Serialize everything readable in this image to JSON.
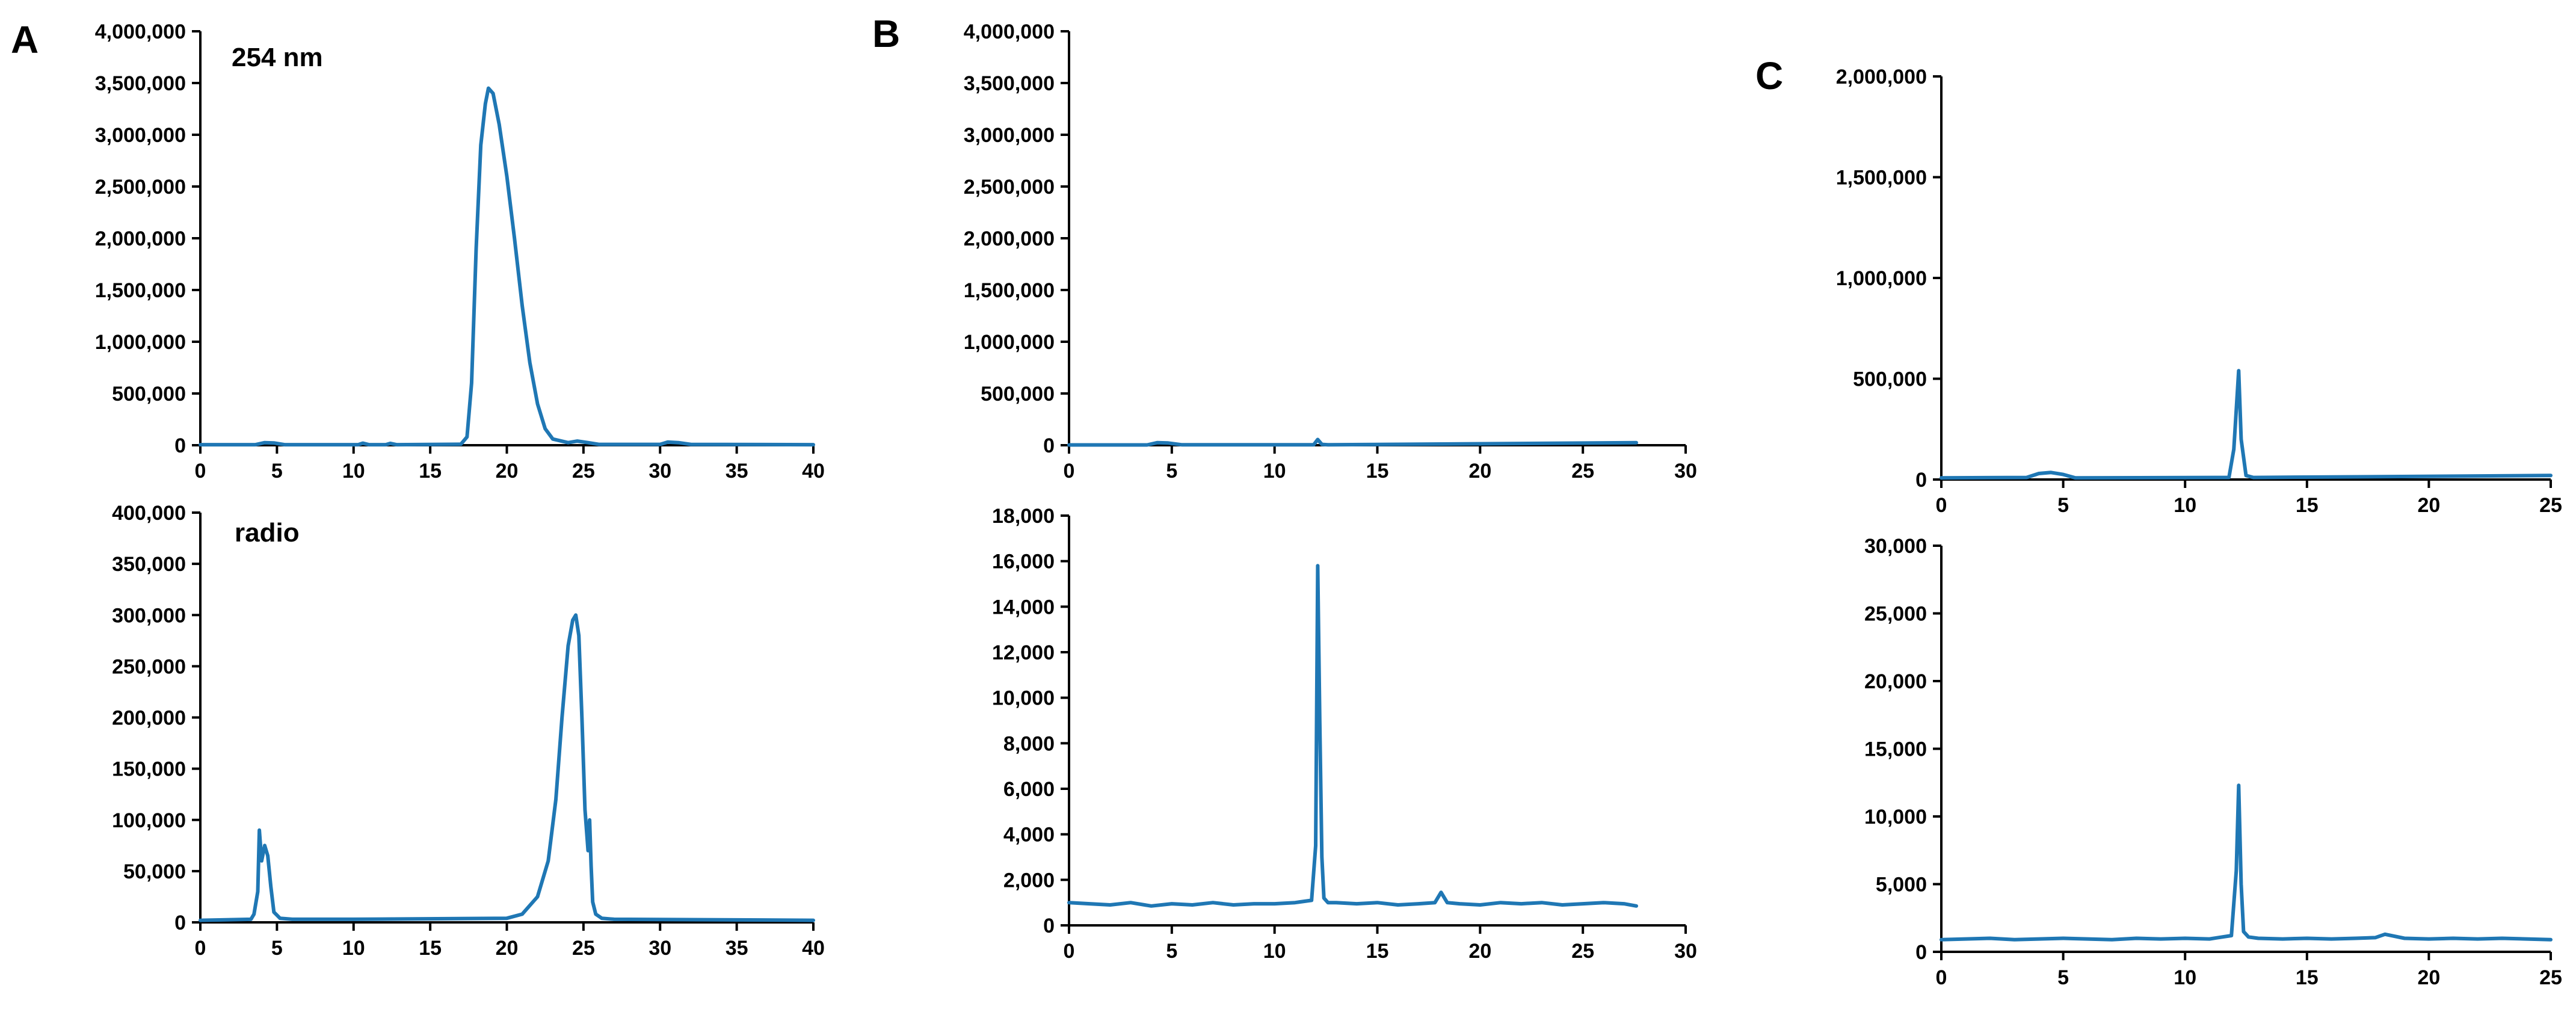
{
  "colors": {
    "trace": "#1f77b4",
    "axis": "#000000"
  },
  "panel_letters": [
    "A",
    "B",
    "C"
  ],
  "chart_data": [
    {
      "type": "line",
      "panel": "A",
      "annotation": "254 nm",
      "xlim": [
        0,
        40
      ],
      "ylim": [
        0,
        4000000
      ],
      "xticks": [
        0,
        5,
        10,
        15,
        20,
        25,
        30,
        35,
        40
      ],
      "xtick_labels": [
        "0",
        "5",
        "10",
        "15",
        "20",
        "25",
        "30",
        "35",
        "40"
      ],
      "yticks": [
        0,
        500000,
        1000000,
        1500000,
        2000000,
        2500000,
        3000000,
        3500000,
        4000000
      ],
      "ytick_labels": [
        "0",
        "500,000",
        "1,000,000",
        "1,500,000",
        "2,000,000",
        "2,500,000",
        "3,000,000",
        "3,500,000",
        "4,000,000"
      ],
      "grid": false,
      "series": [
        {
          "x": [
            0,
            3.6,
            4.2,
            4.8,
            5.5,
            10.3,
            10.6,
            11,
            12.1,
            12.4,
            12.8,
            17,
            17.4,
            17.7,
            18,
            18.3,
            18.6,
            18.8,
            19.1,
            19.5,
            20,
            20.5,
            21,
            21.5,
            22,
            22.5,
            23,
            24,
            24.6,
            25.3,
            26,
            30,
            30.5,
            31.2,
            32,
            40
          ],
          "y": [
            5000,
            5000,
            25000,
            22000,
            5000,
            5000,
            20000,
            5000,
            5000,
            18000,
            5000,
            10000,
            80000,
            600000,
            1900000,
            2900000,
            3300000,
            3450000,
            3400000,
            3100000,
            2600000,
            2000000,
            1350000,
            800000,
            400000,
            160000,
            60000,
            25000,
            40000,
            25000,
            8000,
            8000,
            30000,
            25000,
            8000,
            5000
          ]
        }
      ]
    },
    {
      "type": "line",
      "panel": "A",
      "annotation": "radio",
      "xlim": [
        0,
        40
      ],
      "ylim": [
        0,
        400000
      ],
      "xticks": [
        0,
        5,
        10,
        15,
        20,
        25,
        30,
        35,
        40
      ],
      "xtick_labels": [
        "0",
        "5",
        "10",
        "15",
        "20",
        "25",
        "30",
        "35",
        "40"
      ],
      "yticks": [
        0,
        50000,
        100000,
        150000,
        200000,
        250000,
        300000,
        350000,
        400000
      ],
      "ytick_labels": [
        "0",
        "50,000",
        "100,000",
        "150,000",
        "200,000",
        "250,000",
        "300,000",
        "350,000",
        "400,000"
      ],
      "grid": false,
      "series": [
        {
          "x": [
            0,
            3.3,
            3.5,
            3.75,
            3.85,
            4,
            4.2,
            4.4,
            4.6,
            4.8,
            5.2,
            6,
            10,
            20,
            21,
            22,
            22.7,
            23.2,
            23.6,
            24,
            24.3,
            24.5,
            24.7,
            24.9,
            25.1,
            25.3,
            25.4,
            25.5,
            25.6,
            25.8,
            26.2,
            27,
            40
          ],
          "y": [
            2000,
            3000,
            8000,
            30000,
            90000,
            60000,
            75000,
            65000,
            35000,
            10000,
            4000,
            3000,
            3000,
            4000,
            8000,
            25000,
            60000,
            120000,
            200000,
            270000,
            295000,
            300000,
            280000,
            200000,
            110000,
            70000,
            100000,
            55000,
            20000,
            8000,
            4000,
            3000,
            2000
          ]
        }
      ]
    },
    {
      "type": "line",
      "panel": "B",
      "xlim": [
        0,
        30
      ],
      "ylim": [
        0,
        4000000
      ],
      "xticks": [
        0,
        5,
        10,
        15,
        20,
        25,
        30
      ],
      "xtick_labels": [
        "0",
        "5",
        "10",
        "15",
        "20",
        "25",
        "30"
      ],
      "yticks": [
        0,
        500000,
        1000000,
        1500000,
        2000000,
        2500000,
        3000000,
        3500000,
        4000000
      ],
      "ytick_labels": [
        "0",
        "500,000",
        "1,000,000",
        "1,500,000",
        "2,000,000",
        "2,500,000",
        "3,000,000",
        "3,500,000",
        "4,000,000"
      ],
      "grid": false,
      "series": [
        {
          "x": [
            0,
            3.8,
            4.3,
            4.8,
            5.5,
            11.9,
            12.1,
            12.3,
            12.6,
            27.6
          ],
          "y": [
            3000,
            3000,
            25000,
            22000,
            4000,
            4000,
            55000,
            8000,
            4000,
            25000
          ]
        }
      ]
    },
    {
      "type": "line",
      "panel": "B",
      "xlim": [
        0,
        30
      ],
      "ylim": [
        0,
        18000
      ],
      "xticks": [
        0,
        5,
        10,
        15,
        20,
        25,
        30
      ],
      "xtick_labels": [
        "0",
        "5",
        "10",
        "15",
        "20",
        "25",
        "30"
      ],
      "yticks": [
        0,
        2000,
        4000,
        6000,
        8000,
        10000,
        12000,
        14000,
        16000,
        18000
      ],
      "ytick_labels": [
        "0",
        "2,000",
        "4,000",
        "6,000",
        "8,000",
        "10,000",
        "12,000",
        "14,000",
        "16,000",
        "18,000"
      ],
      "grid": false,
      "series": [
        {
          "x": [
            0,
            1,
            2,
            3,
            4,
            5,
            6,
            7,
            8,
            9,
            10,
            11,
            11.8,
            12,
            12.1,
            12.2,
            12.3,
            12.4,
            12.6,
            13,
            14,
            15,
            16,
            17,
            17.8,
            18.1,
            18.4,
            19,
            20,
            21,
            22,
            23,
            24,
            25,
            26,
            27,
            27.6
          ],
          "y": [
            1000,
            950,
            900,
            1000,
            850,
            950,
            900,
            1000,
            900,
            950,
            950,
            1000,
            1100,
            3500,
            15800,
            9000,
            3000,
            1200,
            1000,
            1000,
            950,
            1000,
            900,
            950,
            1000,
            1450,
            1000,
            950,
            900,
            1000,
            950,
            1000,
            900,
            950,
            1000,
            950,
            850
          ]
        }
      ]
    },
    {
      "type": "line",
      "panel": "C",
      "xlim": [
        0,
        25
      ],
      "ylim": [
        0,
        2000000
      ],
      "xticks": [
        0,
        5,
        10,
        15,
        20,
        25
      ],
      "xtick_labels": [
        "0",
        "5",
        "10",
        "15",
        "20",
        "25"
      ],
      "yticks": [
        0,
        500000,
        1000000,
        1500000,
        2000000
      ],
      "ytick_labels": [
        "0",
        "500,000",
        "1,000,000",
        "1,500,000",
        "2,000,000"
      ],
      "grid": false,
      "series": [
        {
          "x": [
            0,
            3.5,
            4,
            4.5,
            5,
            5.5,
            11.8,
            12,
            12.2,
            12.3,
            12.5,
            12.8,
            25
          ],
          "y": [
            8000,
            10000,
            30000,
            35000,
            25000,
            8000,
            10000,
            150000,
            540000,
            200000,
            20000,
            10000,
            20000
          ]
        }
      ]
    },
    {
      "type": "line",
      "panel": "C",
      "xlim": [
        0,
        25
      ],
      "ylim": [
        0,
        30000
      ],
      "xticks": [
        0,
        5,
        10,
        15,
        20,
        25
      ],
      "xtick_labels": [
        "0",
        "5",
        "10",
        "15",
        "20",
        "25"
      ],
      "yticks": [
        0,
        5000,
        10000,
        15000,
        20000,
        25000,
        30000
      ],
      "ytick_labels": [
        "0",
        "5,000",
        "10,000",
        "15,000",
        "20,000",
        "25,000",
        "30,000"
      ],
      "grid": false,
      "series": [
        {
          "x": [
            0,
            1,
            2,
            3,
            4,
            5,
            6,
            7,
            8,
            9,
            10,
            11,
            11.9,
            12.1,
            12.2,
            12.3,
            12.4,
            12.6,
            13,
            14,
            15,
            16,
            17,
            17.8,
            18.2,
            19,
            20,
            21,
            22,
            23,
            24,
            25
          ],
          "y": [
            900,
            950,
            1000,
            900,
            950,
            1000,
            950,
            900,
            1000,
            950,
            1000,
            950,
            1200,
            6000,
            12300,
            5000,
            1500,
            1100,
            1000,
            950,
            1000,
            950,
            1000,
            1050,
            1300,
            1000,
            950,
            1000,
            950,
            1000,
            950,
            900
          ]
        }
      ]
    }
  ]
}
